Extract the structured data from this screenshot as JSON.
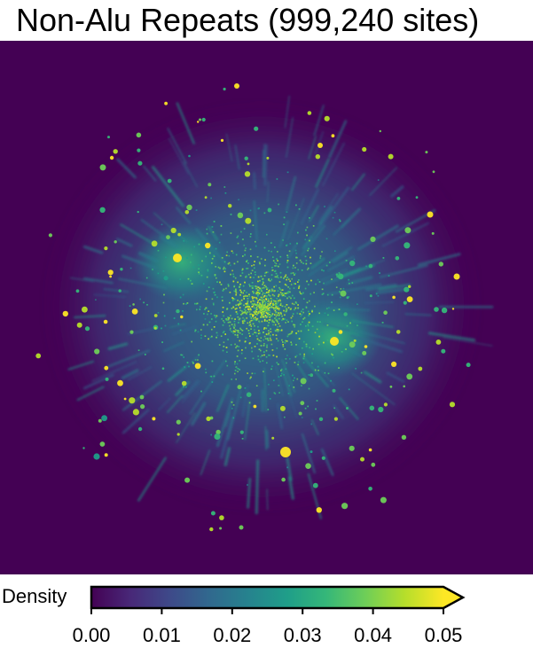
{
  "chart_data": {
    "type": "heatmap",
    "title": "Non-Alu Repeats (999,240 sites)",
    "n_sites": 999240,
    "background_color": "#440154",
    "colormap": "viridis",
    "colormap_stops": [
      "#440154",
      "#482878",
      "#3e4989",
      "#31688e",
      "#26828e",
      "#1f9e89",
      "#35b779",
      "#6ece58",
      "#b5de2b",
      "#fde725"
    ],
    "grid": false,
    "colorbar": {
      "label": "Density",
      "min": 0.0,
      "max": 0.05,
      "extend": "max",
      "ticks": [
        0.0,
        0.01,
        0.02,
        0.03,
        0.04,
        0.05
      ],
      "tick_labels": [
        "0.00",
        "0.01",
        "0.02",
        "0.03",
        "0.04",
        "0.05"
      ],
      "placement": "bottom"
    }
  }
}
